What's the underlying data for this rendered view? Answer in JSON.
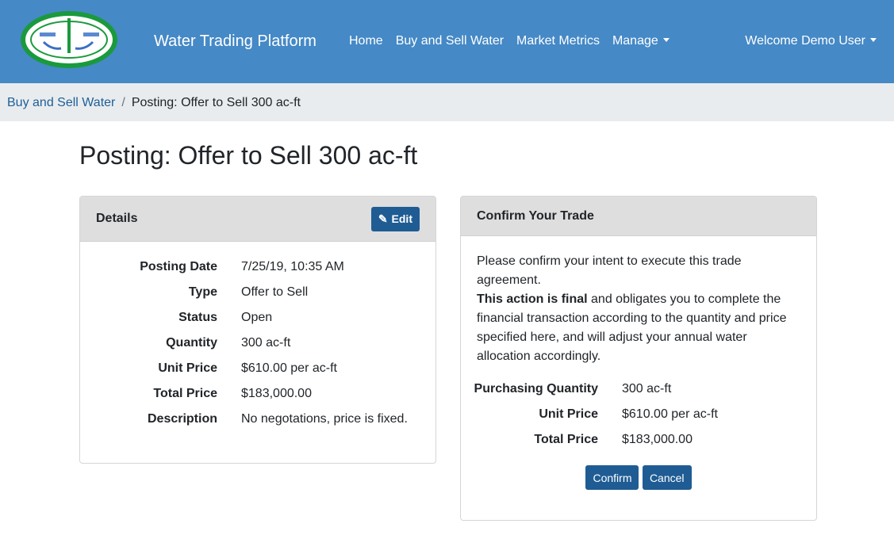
{
  "nav": {
    "logo_text": "Rosedale-Rio Bravo Water Storage District",
    "brand": "Water Trading Platform",
    "links": [
      "Home",
      "Buy and Sell Water",
      "Market Metrics",
      "Manage"
    ],
    "welcome": "Welcome Demo User"
  },
  "breadcrumb": {
    "parent": "Buy and Sell Water",
    "current": "Posting: Offer to Sell 300 ac-ft"
  },
  "title": "Posting: Offer to Sell 300 ac-ft",
  "details": {
    "header": "Details",
    "edit": "Edit",
    "rows": [
      {
        "k": "Posting Date",
        "v": "7/25/19, 10:35 AM"
      },
      {
        "k": "Type",
        "v": "Offer to Sell"
      },
      {
        "k": "Status",
        "v": "Open"
      },
      {
        "k": "Quantity",
        "v": "300 ac-ft"
      },
      {
        "k": "Unit Price",
        "v": "$610.00 per ac-ft"
      },
      {
        "k": "Total Price",
        "v": "$183,000.00"
      },
      {
        "k": "Description",
        "v": "No negotations, price is fixed."
      }
    ]
  },
  "confirm": {
    "header": "Confirm Your Trade",
    "p1": "Please confirm your intent to execute this trade agreement.",
    "bold": "This action is final",
    "p2": " and obligates you to complete the financial transaction according to the quantity and price specified here, and will adjust your annual water allocation accordingly.",
    "rows": [
      {
        "k": "Purchasing Quantity",
        "v": "300 ac-ft"
      },
      {
        "k": "Unit Price",
        "v": "$610.00 per ac-ft"
      },
      {
        "k": "Total Price",
        "v": "$183,000.00"
      }
    ],
    "confirm_btn": "Confirm",
    "cancel_btn": "Cancel"
  }
}
